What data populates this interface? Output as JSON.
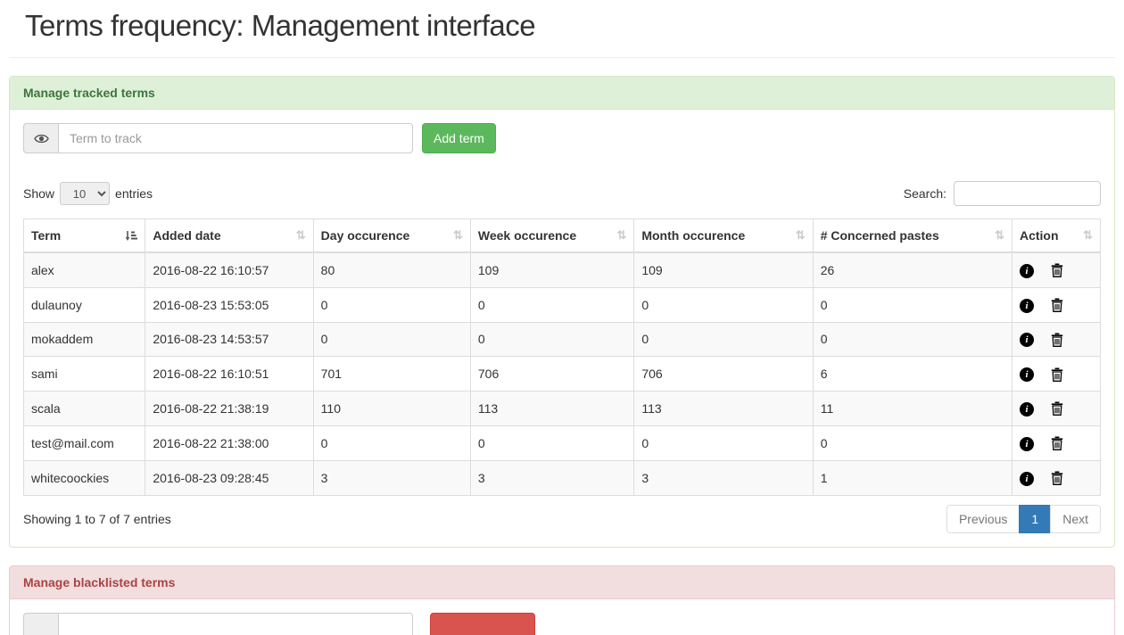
{
  "page": {
    "title": "Terms frequency: Management interface"
  },
  "colors": {
    "success_bg": "#dff0d8",
    "success_text": "#3c763d",
    "success_border": "#d6e9c6",
    "danger_bg": "#f2dede",
    "danger_text": "#a94442",
    "danger_border": "#ebccd1",
    "btn_success": "#5cb85c",
    "btn_danger": "#d9534f",
    "pagination_active": "#337ab7"
  },
  "icons": {
    "eye": "eye-icon",
    "info": "info-circle-icon",
    "trash": "trash-icon",
    "sort_inactive_glyph": "⇅",
    "sort_active": "sort-ascending-icon",
    "select_caret": "caret-down-icon"
  },
  "tracked_panel": {
    "title": "Manage tracked terms",
    "term_input_placeholder": "Term to track",
    "add_button_label": "Add term",
    "show_label": "Show",
    "entries_label": "entries",
    "page_length_value": "10",
    "search_label": "Search:",
    "search_value": "",
    "table": {
      "columns": [
        "Term",
        "Added date",
        "Day occurence",
        "Week occurence",
        "Month occurence",
        "# Concerned pastes",
        "Action"
      ],
      "rows": [
        {
          "term": "alex",
          "added": "2016-08-22 16:10:57",
          "day": "80",
          "week": "109",
          "month": "109",
          "pastes": "26"
        },
        {
          "term": "dulaunoy",
          "added": "2016-08-23 15:53:05",
          "day": "0",
          "week": "0",
          "month": "0",
          "pastes": "0"
        },
        {
          "term": "mokaddem",
          "added": "2016-08-23 14:53:57",
          "day": "0",
          "week": "0",
          "month": "0",
          "pastes": "0"
        },
        {
          "term": "sami",
          "added": "2016-08-22 16:10:51",
          "day": "701",
          "week": "706",
          "month": "706",
          "pastes": "6"
        },
        {
          "term": "scala",
          "added": "2016-08-22 21:38:19",
          "day": "110",
          "week": "113",
          "month": "113",
          "pastes": "11"
        },
        {
          "term": "test@mail.com",
          "added": "2016-08-22 21:38:00",
          "day": "0",
          "week": "0",
          "month": "0",
          "pastes": "0"
        },
        {
          "term": "whitecoockies",
          "added": "2016-08-23 09:28:45",
          "day": "3",
          "week": "3",
          "month": "3",
          "pastes": "1"
        }
      ]
    },
    "info_text": "Showing 1 to 7 of 7 entries",
    "pagination": {
      "previous": "Previous",
      "current_page": "1",
      "next": "Next"
    }
  },
  "blacklist_panel": {
    "title": "Manage blacklisted terms",
    "term_input_value": "",
    "add_button_label": ""
  }
}
